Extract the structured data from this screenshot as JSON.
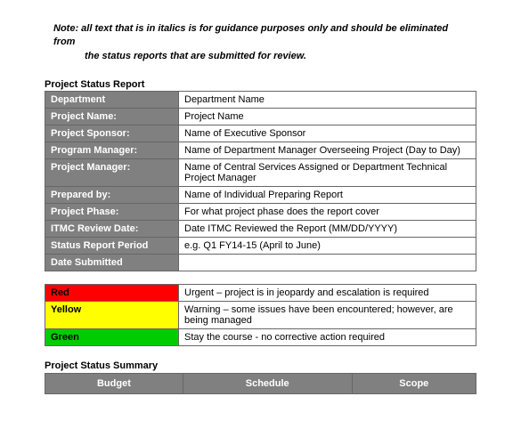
{
  "note": {
    "line1": "Note: all text that is in italics is for guidance purposes only and should be eliminated from",
    "line2": "the status reports that are submitted for review."
  },
  "report": {
    "title": "Project Status Report",
    "rows": [
      {
        "label": "Department",
        "value": "Department Name"
      },
      {
        "label": "Project Name:",
        "value": "Project Name"
      },
      {
        "label": "Project Sponsor:",
        "value": "Name of Executive Sponsor"
      },
      {
        "label": "Program Manager:",
        "value": "Name of Department Manager Overseeing Project (Day to Day)"
      },
      {
        "label": "Project Manager:",
        "value": "Name of Central Services Assigned or Department Technical Project Manager"
      },
      {
        "label": "Prepared by:",
        "value": "Name of Individual Preparing Report"
      },
      {
        "label": "Project Phase:",
        "value": "For what project phase does the report cover"
      },
      {
        "label": "ITMC Review Date:",
        "value": "Date ITMC Reviewed the Report (MM/DD/YYYY)"
      },
      {
        "label": "Status Report Period",
        "value": "e.g. Q1 FY14-15 (April to June)"
      },
      {
        "label": "Date Submitted",
        "value": ""
      }
    ]
  },
  "status": {
    "rows": [
      {
        "color_class": "red-cell",
        "label": "Red",
        "desc": "Urgent – project is in jeopardy and escalation is required"
      },
      {
        "color_class": "yellow-cell",
        "label": "Yellow",
        "desc": "Warning – some issues have been encountered; however, are being managed"
      },
      {
        "color_class": "green-cell",
        "label": "Green",
        "desc": "Stay the course - no corrective action required"
      }
    ]
  },
  "summary": {
    "title": "Project Status Summary",
    "cols": [
      "Budget",
      "Schedule",
      "Scope"
    ]
  }
}
